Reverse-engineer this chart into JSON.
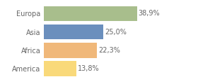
{
  "categories": [
    "America",
    "Africa",
    "Asia",
    "Europa"
  ],
  "values": [
    13.8,
    22.3,
    25.0,
    38.9
  ],
  "labels": [
    "13,8%",
    "22,3%",
    "25,0%",
    "38,9%"
  ],
  "bar_colors": [
    "#f9d97a",
    "#f0b87a",
    "#6b8fbd",
    "#a8be8c"
  ],
  "xlim": [
    0,
    52
  ],
  "background_color": "#ffffff",
  "label_fontsize": 7.0,
  "tick_fontsize": 7.0,
  "bar_height": 0.82
}
